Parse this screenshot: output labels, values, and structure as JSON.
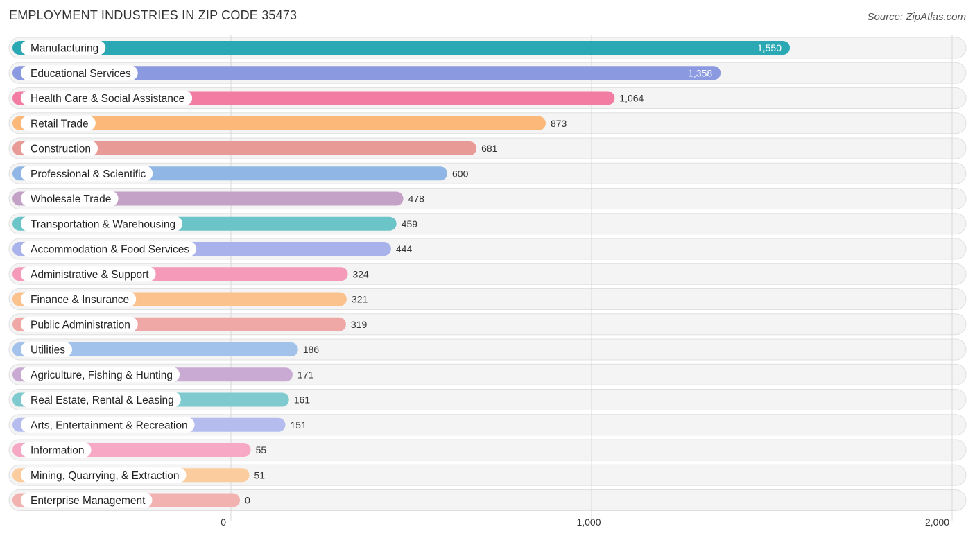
{
  "header": {
    "title": "EMPLOYMENT INDUSTRIES IN ZIP CODE 35473",
    "source": "Source: ZipAtlas.com"
  },
  "chart_data": {
    "type": "bar",
    "orientation": "horizontal",
    "title": "EMPLOYMENT INDUSTRIES IN ZIP CODE 35473",
    "xlabel": "",
    "ylabel": "",
    "xlim": [
      0,
      2000
    ],
    "ticks": [
      0,
      1000,
      2000
    ],
    "tick_labels": [
      "0",
      "1,000",
      "2,000"
    ],
    "grid": true,
    "categories": [
      "Manufacturing",
      "Educational Services",
      "Health Care & Social Assistance",
      "Retail Trade",
      "Construction",
      "Professional & Scientific",
      "Wholesale Trade",
      "Transportation & Warehousing",
      "Accommodation & Food Services",
      "Administrative & Support",
      "Finance & Insurance",
      "Public Administration",
      "Utilities",
      "Agriculture, Fishing & Hunting",
      "Real Estate, Rental & Leasing",
      "Arts, Entertainment & Recreation",
      "Information",
      "Mining, Quarrying, & Extraction",
      "Enterprise Management"
    ],
    "values": [
      1550,
      1358,
      1064,
      873,
      681,
      600,
      478,
      459,
      444,
      324,
      321,
      319,
      186,
      171,
      161,
      151,
      55,
      51,
      0
    ],
    "value_labels": [
      "1,550",
      "1,358",
      "1,064",
      "873",
      "681",
      "600",
      "478",
      "459",
      "444",
      "324",
      "321",
      "319",
      "186",
      "171",
      "161",
      "151",
      "55",
      "51",
      "0"
    ],
    "colors": [
      "#2aa8b4",
      "#8b99e0",
      "#f27ca2",
      "#fbb878",
      "#e89a96",
      "#8fb6e4",
      "#c4a2c8",
      "#6bc4c8",
      "#a9b2ea",
      "#f59ab8",
      "#fbc28e",
      "#efa8a6",
      "#a2c2ec",
      "#c9aad2",
      "#7ecace",
      "#b4bdee",
      "#f7a8c4",
      "#fbcc9e",
      "#f2b2b0"
    ]
  }
}
